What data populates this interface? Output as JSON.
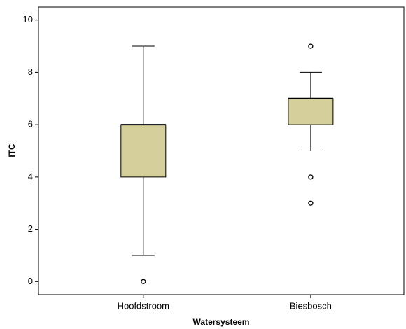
{
  "chart_data": {
    "type": "box",
    "x_label": "Watersysteem",
    "y_label": "ITC",
    "categories": [
      "Hoofdstroom",
      "Biesbosch"
    ],
    "boxes": [
      {
        "whisker_low": 1,
        "q1": 4,
        "median": 6,
        "q3": 6,
        "whisker_high": 9,
        "outliers": [
          0
        ]
      },
      {
        "whisker_low": 5,
        "q1": 6,
        "median": 7,
        "q3": 7,
        "whisker_high": 8,
        "outliers": [
          9,
          4,
          3
        ]
      }
    ],
    "color": "#d4cf9b",
    "ylim": [
      -0.5,
      10.5
    ],
    "yticks": [
      0,
      2,
      4,
      6,
      8,
      10
    ],
    "grid": false
  }
}
